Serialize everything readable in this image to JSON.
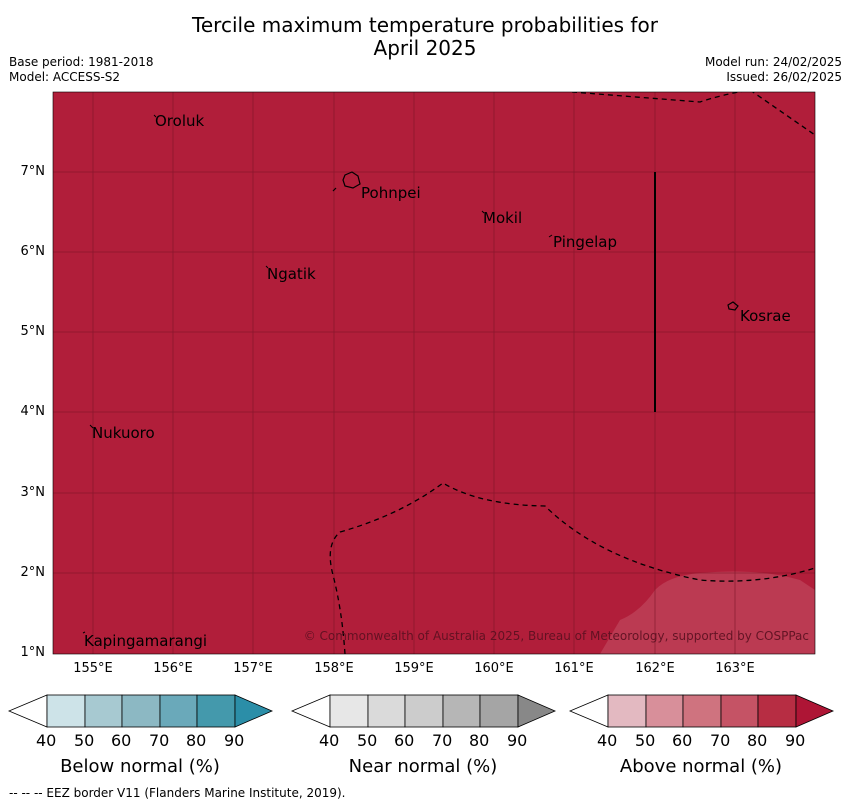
{
  "title_line1": "Tercile maximum temperature probabilities for",
  "title_line2": "April 2025",
  "meta_left": {
    "base_period": "Base period: 1981-2018",
    "model": "Model: ACCESS-S2"
  },
  "meta_right": {
    "model_run": "Model run: 24/02/2025",
    "issued": "Issued: 26/02/2025"
  },
  "map": {
    "lon_range": [
      154.5,
      164.0
    ],
    "lat_range": [
      1.0,
      8.0
    ],
    "lat_ticks": [
      "7°N",
      "6°N",
      "5°N",
      "4°N",
      "3°N",
      "2°N",
      "1°N"
    ],
    "lon_ticks": [
      "155°E",
      "156°E",
      "157°E",
      "158°E",
      "159°E",
      "160°E",
      "161°E",
      "162°E",
      "163°E"
    ],
    "places": [
      "Oroluk",
      "Pohnpei",
      "Mokil",
      "Pingelap",
      "Ngatik",
      "Kosrae",
      "Nukuoro",
      "Kapingamarangi"
    ],
    "copyright": "© Commonwealth of Australia 2025, Bureau of Meteorology, supported by COSPPac",
    "fill_color": "#b11e3a",
    "lighter_patch_color": "#bb3a52"
  },
  "colorbars": [
    {
      "title": "Below normal (%)",
      "ticks": [
        "40",
        "50",
        "60",
        "70",
        "80",
        "90"
      ],
      "colors": [
        "#cde3e8",
        "#a7c9d1",
        "#8cb8c3",
        "#6aa9ba",
        "#4499ac",
        "#2b8ea8"
      ]
    },
    {
      "title": "Near normal (%)",
      "ticks": [
        "40",
        "50",
        "60",
        "70",
        "80",
        "90"
      ],
      "colors": [
        "#e7e7e7",
        "#dadada",
        "#cccccc",
        "#b6b6b6",
        "#a5a5a5",
        "#888888"
      ]
    },
    {
      "title": "Above normal (%)",
      "ticks": [
        "40",
        "50",
        "60",
        "70",
        "80",
        "90"
      ],
      "colors": [
        "#e3b9c1",
        "#d88f9a",
        "#cf737f",
        "#c55365",
        "#b72d43",
        "#ae1535"
      ]
    }
  ],
  "footnote": "--  --  -- EEZ border V11 (Flanders Marine Institute, 2019)."
}
